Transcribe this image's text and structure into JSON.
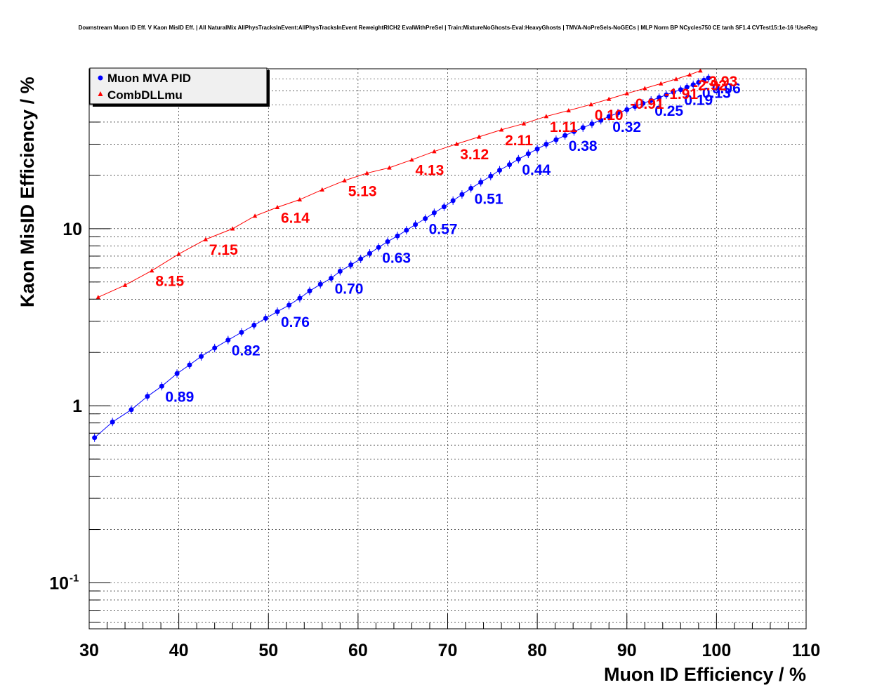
{
  "chart_data": {
    "type": "scatter",
    "title": "Downstream Muon ID Eff. V Kaon MisID Eff. | All NaturalMix AllPhysTracksInEvent:AllPhysTracksInEvent ReweightRICH2 EvalWithPreSel | Train:MixtureNoGhosts-Eval:HeavyGhosts | TMVA-NoPreSels-NoGECs | MLP Norm BP NCycles750 CE tanh SF1.4 CVTest15:1e-16 !UseReg",
    "xlabel": "Muon ID Efficiency / %",
    "ylabel": "Kaon MisID Efficiency / %",
    "xlim": [
      30,
      110
    ],
    "ylim": [
      0.055,
      80
    ],
    "yscale": "log",
    "grid": true,
    "legend_position": "top-left",
    "x_ticks": [
      "30",
      "40",
      "50",
      "60",
      "70",
      "80",
      "90",
      "100",
      "110"
    ],
    "y_ticks": [
      {
        "value": 0.1,
        "base": "10",
        "exp": "-1"
      },
      {
        "value": 1,
        "base": "1",
        "exp": ""
      },
      {
        "value": 10,
        "base": "10",
        "exp": ""
      }
    ],
    "series": [
      {
        "name": "Muon MVA PID",
        "color": "#0000ff",
        "marker": "circle",
        "x": [
          30.6,
          32.6,
          34.7,
          36.5,
          38.1,
          39.8,
          41.2,
          42.5,
          44.0,
          45.5,
          47.0,
          48.4,
          49.7,
          51.0,
          52.3,
          53.5,
          54.6,
          55.8,
          57.0,
          58.0,
          59.2,
          60.3,
          61.3,
          62.3,
          63.3,
          64.4,
          65.4,
          66.4,
          67.5,
          68.5,
          69.6,
          70.6,
          71.6,
          72.6,
          73.7,
          74.8,
          75.8,
          76.9,
          77.9,
          79.0,
          80.0,
          81.0,
          82.1,
          83.1,
          84.1,
          85.1,
          86.1,
          87.1,
          88.0,
          89.0,
          90.0,
          90.9,
          91.8,
          92.7,
          93.6,
          94.4,
          95.2,
          96.0,
          96.7,
          97.4,
          98.0,
          98.6,
          99.1
        ],
        "y": [
          0.66,
          0.81,
          0.95,
          1.13,
          1.29,
          1.52,
          1.7,
          1.9,
          2.12,
          2.35,
          2.6,
          2.85,
          3.12,
          3.4,
          3.7,
          4.05,
          4.45,
          4.85,
          5.25,
          5.75,
          6.25,
          6.75,
          7.25,
          7.85,
          8.45,
          9.1,
          9.8,
          10.55,
          11.4,
          12.3,
          13.3,
          14.4,
          15.6,
          16.9,
          18.3,
          19.8,
          21.4,
          23.0,
          24.7,
          26.5,
          28.2,
          30.0,
          31.8,
          33.6,
          35.4,
          37.2,
          39.1,
          41.0,
          43.0,
          45.0,
          47.0,
          49.0,
          51.0,
          53.0,
          55.0,
          57.0,
          59.0,
          61.0,
          63.0,
          65.0,
          67.0,
          69.0,
          71.0
        ],
        "labels": [
          {
            "text": "0.89",
            "x": 38.1,
            "y": 1.29
          },
          {
            "text": "0.82",
            "x": 45.5,
            "y": 2.35
          },
          {
            "text": "0.76",
            "x": 51.0,
            "y": 3.4
          },
          {
            "text": "0.70",
            "x": 57.0,
            "y": 5.25
          },
          {
            "text": "0.63",
            "x": 62.3,
            "y": 7.85
          },
          {
            "text": "0.57",
            "x": 67.5,
            "y": 11.4
          },
          {
            "text": "0.51",
            "x": 72.6,
            "y": 16.9
          },
          {
            "text": "0.44",
            "x": 77.9,
            "y": 24.7
          },
          {
            "text": "0.38",
            "x": 83.1,
            "y": 33.6
          },
          {
            "text": "0.32",
            "x": 88.0,
            "y": 43.0
          },
          {
            "text": "0.25",
            "x": 92.7,
            "y": 53.0
          },
          {
            "text": "0.19",
            "x": 96.0,
            "y": 61.0
          },
          {
            "text": "0.13",
            "x": 98.0,
            "y": 67.0
          },
          {
            "text": "0.06",
            "x": 99.1,
            "y": 71.0
          }
        ]
      },
      {
        "name": "CombDLLmu",
        "color": "#ff0000",
        "marker": "triangle",
        "x": [
          31.0,
          34.0,
          37.0,
          40.0,
          43.0,
          46.0,
          48.5,
          51.0,
          53.5,
          56.0,
          58.5,
          61.0,
          63.5,
          66.0,
          68.5,
          71.0,
          73.5,
          76.0,
          78.5,
          81.0,
          83.5,
          86.0,
          88.0,
          90.0,
          92.0,
          93.8,
          95.5,
          97.0,
          98.2
        ],
        "y": [
          4.1,
          4.8,
          5.8,
          7.2,
          8.7,
          10.0,
          11.8,
          13.2,
          14.6,
          16.6,
          18.7,
          20.6,
          22.1,
          24.5,
          27.3,
          30.1,
          33.0,
          36.2,
          39.2,
          43.1,
          46.5,
          50.3,
          54.0,
          58.0,
          62.0,
          66.0,
          70.0,
          74.0,
          78.0
        ],
        "labels": [
          {
            "text": "8.15",
            "x": 37.0,
            "y": 5.8
          },
          {
            "text": "7.15",
            "x": 43.0,
            "y": 8.7
          },
          {
            "text": "6.14",
            "x": 51.0,
            "y": 13.2
          },
          {
            "text": "5.13",
            "x": 58.5,
            "y": 18.7
          },
          {
            "text": "4.13",
            "x": 66.0,
            "y": 24.5
          },
          {
            "text": "3.12",
            "x": 71.0,
            "y": 30.1
          },
          {
            "text": "2.11",
            "x": 76.0,
            "y": 36.2
          },
          {
            "text": "1.11",
            "x": 81.0,
            "y": 43.1
          },
          {
            "text": "0.10",
            "x": 86.0,
            "y": 50.3
          },
          {
            "text": "-0.91",
            "x": 90.0,
            "y": 58.0
          },
          {
            "text": "-1.91",
            "x": 93.8,
            "y": 66.0
          },
          {
            "text": "-2.92",
            "x": 97.0,
            "y": 74.0
          },
          {
            "text": "-3.93",
            "x": 98.2,
            "y": 78.0
          }
        ]
      }
    ]
  }
}
